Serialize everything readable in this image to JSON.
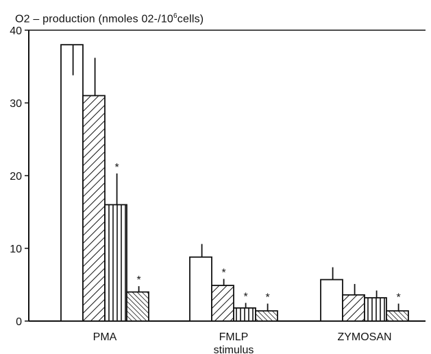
{
  "title": {
    "prefix": "O2 – production (nmoles 02-/10",
    "superscript": "6",
    "suffix": "cells)"
  },
  "chart_data": {
    "type": "bar",
    "title": "O2 – production (nmoles 02-/10⁶cells)",
    "xlabel": "stimulus",
    "ylabel": "",
    "ylim": [
      0,
      40
    ],
    "yticks": [
      "0",
      "10",
      "20",
      "30",
      "40"
    ],
    "categories": [
      "PMA",
      "FMLP",
      "ZYMOSAN"
    ],
    "series": [
      {
        "pattern": "open",
        "values": [
          38,
          8.8,
          5.7
        ],
        "err_upper": [
          38,
          10.6,
          7.4
        ],
        "err_lower": [
          33.8,
          8.8,
          5.7
        ],
        "significant": [
          false,
          false,
          false
        ]
      },
      {
        "pattern": "diagonal-hatch",
        "values": [
          31,
          4.9,
          3.6
        ],
        "err_upper": [
          36.2,
          5.8,
          5.1
        ],
        "err_lower": [
          31,
          4.9,
          3.6
        ],
        "significant": [
          false,
          true,
          false
        ]
      },
      {
        "pattern": "vertical-hatch",
        "values": [
          16,
          1.8,
          3.2
        ],
        "err_upper": [
          20.3,
          2.5,
          4.2
        ],
        "err_lower": [
          16,
          1.8,
          3.2
        ],
        "significant": [
          true,
          true,
          false
        ]
      },
      {
        "pattern": "dense-diagonal-hatch",
        "values": [
          4,
          1.4,
          1.4
        ],
        "err_upper": [
          4.8,
          2.4,
          2.4
        ],
        "err_lower": [
          4,
          1.4,
          1.4
        ],
        "significant": [
          true,
          true,
          true
        ]
      }
    ],
    "significance_marker": "*",
    "grid": false,
    "legend": "none"
  }
}
